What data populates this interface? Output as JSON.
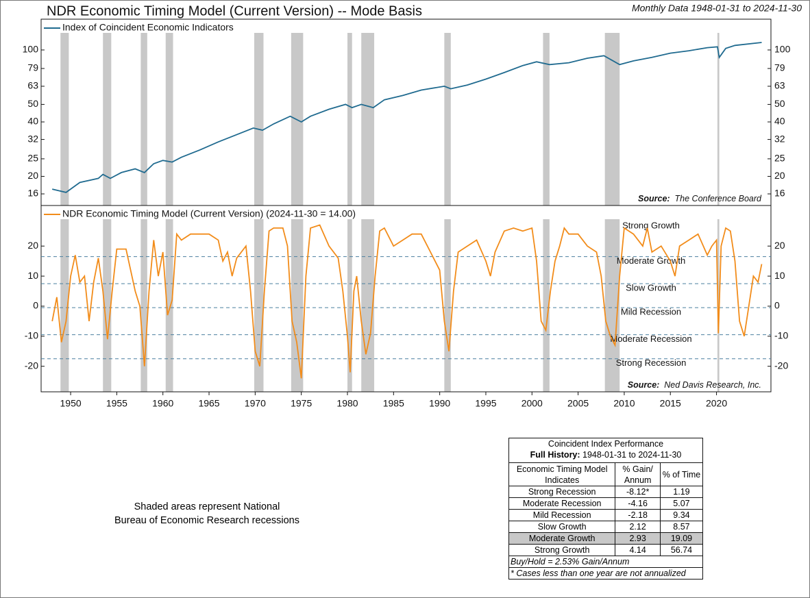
{
  "title": "NDR Economic Timing Model (Current Version) -- Mode Basis",
  "subtitle": "Monthly Data 1948-01-31 to 2024-11-30",
  "note": [
    "Shaded areas represent National",
    "Bureau of Economic Research recessions"
  ],
  "chart_data": [
    {
      "type": "line",
      "log_scale": true,
      "xlim": [
        1946.8,
        2025.9
      ],
      "ylim": [
        13.8,
        148
      ],
      "yticks": [
        16,
        20,
        25,
        32,
        40,
        50,
        63,
        79,
        100
      ],
      "source": {
        "label": "Source:",
        "text": "The Conference Board"
      },
      "recessions": [
        [
          1948.9,
          1949.8
        ],
        [
          1953.5,
          1954.4
        ],
        [
          1957.6,
          1958.3
        ],
        [
          1960.3,
          1961.1
        ],
        [
          1969.9,
          1970.9
        ],
        [
          1973.9,
          1975.2
        ],
        [
          1980.0,
          1980.5
        ],
        [
          1981.5,
          1982.9
        ],
        [
          1990.5,
          1991.2
        ],
        [
          2001.2,
          2001.9
        ],
        [
          2007.9,
          2009.5
        ],
        [
          2020.1,
          2020.3
        ]
      ],
      "recession_color": "#c8c8c8",
      "series": [
        {
          "name": "Index of Coincident Economic Indicators",
          "color": "#1f6a8f",
          "x": [
            1948,
            1949.5,
            1951,
            1953,
            1953.5,
            1954.3,
            1955.5,
            1957,
            1958,
            1959,
            1960,
            1961,
            1962,
            1964,
            1966,
            1968,
            1969.8,
            1970.8,
            1972,
            1973.8,
            1975,
            1976,
            1978,
            1979.8,
            1980.5,
            1981.5,
            1982.8,
            1984,
            1986,
            1988,
            1990.5,
            1991.2,
            1993,
            1995,
            1997,
            1999,
            2000.5,
            2001.9,
            2004,
            2006,
            2007.8,
            2009.5,
            2011,
            2013,
            2015,
            2017,
            2019,
            2020.1,
            2020.3,
            2021,
            2022,
            2024.9
          ],
          "values": [
            17,
            16.3,
            18.5,
            19.5,
            20.5,
            19.5,
            21,
            22,
            21,
            23.5,
            24.5,
            24,
            25.5,
            28,
            31,
            34,
            37,
            36,
            39,
            43,
            40,
            43,
            47,
            50,
            48,
            50,
            48,
            53,
            56,
            60,
            63,
            61,
            64,
            69,
            75,
            82,
            86,
            83,
            85,
            90,
            93,
            83,
            87,
            91,
            96,
            99,
            103,
            104,
            91,
            102,
            106,
            110
          ]
        }
      ]
    },
    {
      "type": "line",
      "xlim": [
        1946.8,
        2025.9
      ],
      "ylim": [
        -28.5,
        33.5
      ],
      "yticks": [
        -20,
        -10,
        0,
        10,
        20
      ],
      "xticks": [
        1950,
        1955,
        1960,
        1965,
        1970,
        1975,
        1980,
        1985,
        1990,
        1995,
        2000,
        2005,
        2010,
        2015,
        2020
      ],
      "source": {
        "label": "Source:",
        "text": "Ned Davis Research, Inc."
      },
      "top_zone": "Strong Growth",
      "zones": [
        {
          "label": "Moderate Growth",
          "value": 16.5
        },
        {
          "label": "Slow Growth",
          "value": 7.5
        },
        {
          "label": "Mild Recession",
          "value": -0.5
        },
        {
          "label": "Moderate Recession",
          "value": -9.5
        },
        {
          "label": "Strong Recession",
          "value": -17.5
        }
      ],
      "zone_color": "#4a7f9f",
      "series": [
        {
          "name": "NDR Economic Timing Model (Current Version) (2024-11-30 = 14.00)",
          "color": "#f28c1a",
          "x": [
            1948.0,
            1948.5,
            1949.0,
            1949.5,
            1950,
            1950.5,
            1951,
            1951.5,
            1952,
            1952.5,
            1953,
            1953.5,
            1954,
            1954.5,
            1955,
            1956,
            1956.5,
            1957,
            1957.5,
            1958,
            1958.5,
            1959,
            1959.5,
            1960,
            1960.5,
            1961,
            1961.5,
            1962,
            1963,
            1964,
            1965,
            1966,
            1966.5,
            1967,
            1967.5,
            1968,
            1969,
            1969.5,
            1970,
            1970.5,
            1971,
            1971.5,
            1972,
            1973,
            1973.5,
            1974,
            1974.5,
            1975,
            1975.5,
            1976,
            1977,
            1978,
            1979,
            1979.5,
            1980,
            1980.3,
            1980.7,
            1981,
            1981.5,
            1982,
            1982.5,
            1983,
            1983.5,
            1984,
            1985,
            1986,
            1987,
            1988,
            1989,
            1989.5,
            1990,
            1990.5,
            1991,
            1991.5,
            1992,
            1993,
            1994,
            1995,
            1995.5,
            1996,
            1997,
            1998,
            1999,
            2000,
            2000.5,
            2001,
            2001.5,
            2002,
            2002.5,
            2003,
            2003.5,
            2004,
            2005,
            2006,
            2007,
            2007.5,
            2008,
            2008.5,
            2009,
            2009.5,
            2010,
            2011,
            2012,
            2012.5,
            2013,
            2014,
            2015,
            2015.5,
            2016,
            2017,
            2018,
            2019,
            2019.5,
            2020,
            2020.2,
            2020.5,
            2021,
            2021.5,
            2022,
            2022.5,
            2023,
            2023.5,
            2024,
            2024.5,
            2024.9
          ],
          "values": [
            -5,
            3,
            -12,
            -5,
            10,
            17,
            8,
            10,
            -5,
            8,
            16,
            5,
            -11,
            5,
            19,
            19,
            12,
            5,
            0,
            -20,
            5,
            22,
            10,
            18,
            -3,
            2,
            24,
            22,
            24,
            24,
            24,
            22,
            15,
            18,
            10,
            16,
            20,
            5,
            -15,
            -20,
            5,
            25,
            26,
            26,
            20,
            -5,
            -12,
            -24,
            10,
            26,
            27,
            20,
            16,
            5,
            -10,
            -22,
            5,
            10,
            -5,
            -16,
            -9,
            10,
            25,
            26,
            20,
            22,
            24,
            24,
            18,
            15,
            12,
            -5,
            -15,
            5,
            18,
            20,
            22,
            15,
            10,
            18,
            25,
            26,
            25,
            26,
            15,
            -5,
            -8,
            5,
            15,
            20,
            26,
            24,
            24,
            20,
            18,
            10,
            -5,
            -10,
            -13,
            10,
            26,
            24,
            20,
            26,
            18,
            20,
            15,
            10,
            20,
            22,
            24,
            17,
            20,
            22,
            -9,
            20,
            26,
            25,
            15,
            -5,
            -10,
            0,
            10,
            8,
            14
          ]
        }
      ]
    }
  ],
  "table": {
    "title": "Coincident Index Performance",
    "history_label": "Full History:",
    "history_range": "1948-01-31 to 2024-11-30",
    "columns": [
      "Economic Timing Model Indicates",
      "% Gain/ Annum",
      "% of Time"
    ],
    "rows": [
      [
        "Strong Recession",
        "-8.12*",
        "1.19"
      ],
      [
        "Moderate Recession",
        "-4.16",
        "5.07"
      ],
      [
        "Mild Recession",
        "-2.18",
        "9.34"
      ],
      [
        "Slow Growth",
        "2.12",
        "8.57"
      ],
      [
        "Moderate Growth",
        "2.93",
        "19.09"
      ],
      [
        "Strong Growth",
        "4.14",
        "56.74"
      ]
    ],
    "highlight_row": 4,
    "footnotes": [
      "Buy/Hold = 2.53% Gain/Annum",
      "* Cases less than one year are not annualized"
    ]
  }
}
